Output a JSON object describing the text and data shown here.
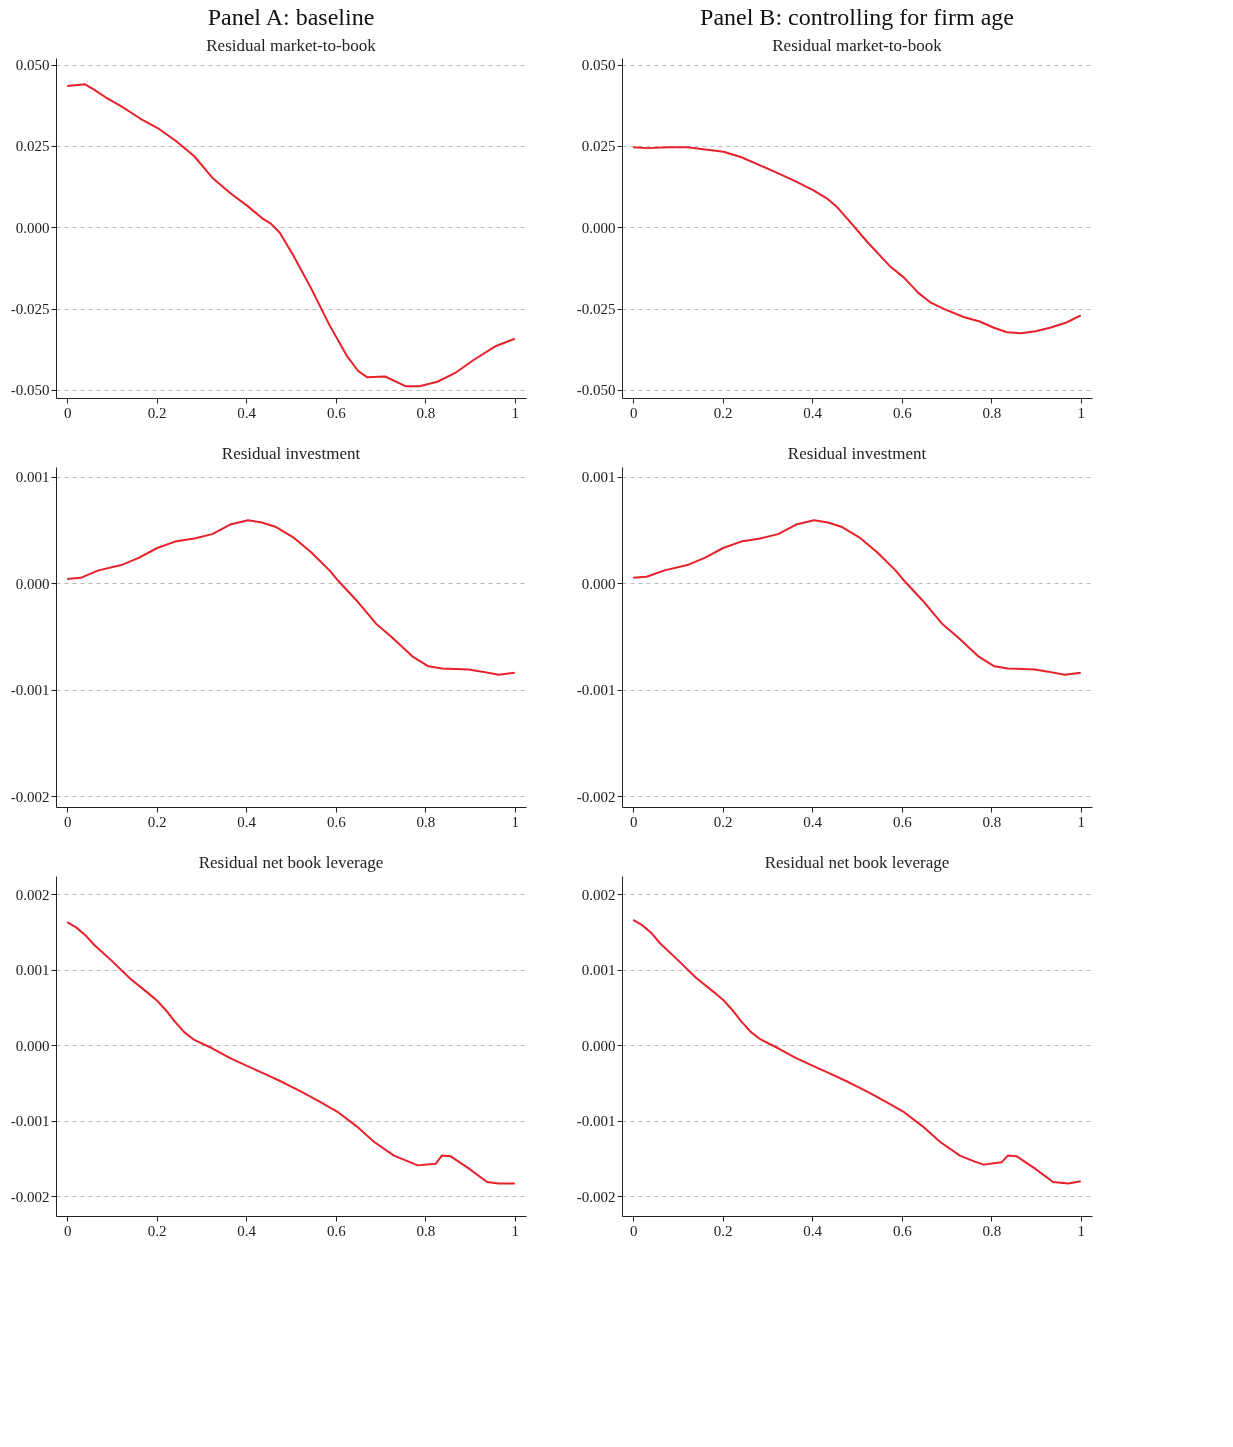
{
  "chart_data": [
    {
      "type": "line",
      "title": "Panel A: baseline",
      "subtitle": "Residual market-to-book",
      "x": [
        0,
        0.04,
        0.06,
        0.085,
        0.123,
        0.163,
        0.203,
        0.243,
        0.284,
        0.324,
        0.364,
        0.404,
        0.435,
        0.455,
        0.475,
        0.505,
        0.545,
        0.586,
        0.626,
        0.65,
        0.67,
        0.71,
        0.757,
        0.787,
        0.827,
        0.867,
        0.907,
        0.958,
        1
      ],
      "series": [
        {
          "color": "#e8202a",
          "values": [
            0.0434,
            0.0439,
            0.0423,
            0.04,
            0.037,
            0.0334,
            0.0304,
            0.0265,
            0.0218,
            0.0152,
            0.0105,
            0.0064,
            0.0028,
            0.0011,
            -0.0017,
            -0.0086,
            -0.0188,
            -0.0301,
            -0.0398,
            -0.0442,
            -0.0461,
            -0.0459,
            -0.0489,
            -0.0489,
            -0.0475,
            -0.0448,
            -0.0409,
            -0.0365,
            -0.0343
          ]
        }
      ],
      "xlim": [
        -0.025,
        1.025
      ],
      "xticks": [
        0,
        0.2,
        0.4,
        0.6,
        0.8,
        1
      ],
      "ylim": [
        -0.0525,
        0.052
      ],
      "yticks": [
        {
          "value": -0.05,
          "label": "-0.050"
        },
        {
          "value": -0.025,
          "label": "-0.025"
        },
        {
          "value": 0,
          "label": "0.000"
        },
        {
          "value": 0.025,
          "label": "0.025"
        },
        {
          "value": 0.05,
          "label": "0.050"
        }
      ],
      "grid": "y",
      "marker": "none",
      "line_style": "solid"
    },
    {
      "type": "line",
      "title": "Panel B: controlling for firm age",
      "subtitle": "Residual market-to-book",
      "x": [
        0,
        0.032,
        0.081,
        0.121,
        0.202,
        0.242,
        0.282,
        0.323,
        0.363,
        0.403,
        0.435,
        0.456,
        0.484,
        0.524,
        0.573,
        0.605,
        0.637,
        0.665,
        0.694,
        0.738,
        0.774,
        0.806,
        0.835,
        0.867,
        0.899,
        0.931,
        0.968,
        1
      ],
      "series": [
        {
          "color": "#e8202a",
          "values": [
            0.0246,
            0.0243,
            0.0246,
            0.0246,
            0.0232,
            0.0215,
            0.0191,
            0.0166,
            0.0141,
            0.0113,
            0.0086,
            0.0061,
            0.0017,
            -0.0047,
            -0.0119,
            -0.0155,
            -0.0202,
            -0.0232,
            -0.0251,
            -0.0276,
            -0.029,
            -0.0309,
            -0.0323,
            -0.0326,
            -0.032,
            -0.0309,
            -0.0293,
            -0.0271
          ]
        }
      ],
      "xlim": [
        -0.025,
        1.025
      ],
      "xticks": [
        0,
        0.2,
        0.4,
        0.6,
        0.8,
        1
      ],
      "ylim": [
        -0.0525,
        0.052
      ],
      "yticks": [
        {
          "value": -0.05,
          "label": "-0.050"
        },
        {
          "value": -0.025,
          "label": "-0.025"
        },
        {
          "value": 0,
          "label": "0.000"
        },
        {
          "value": 0.025,
          "label": "0.025"
        },
        {
          "value": 0.05,
          "label": "0.050"
        }
      ],
      "grid": "y",
      "marker": "none",
      "line_style": "solid"
    },
    {
      "type": "line",
      "title": "Residual investment",
      "x": [
        0,
        0.03,
        0.07,
        0.121,
        0.161,
        0.201,
        0.241,
        0.284,
        0.324,
        0.364,
        0.404,
        0.435,
        0.465,
        0.505,
        0.545,
        0.586,
        0.606,
        0.646,
        0.69,
        0.726,
        0.772,
        0.807,
        0.837,
        0.897,
        0.927,
        0.964,
        1
      ],
      "series": [
        {
          "color": "#e8202a",
          "values": [
            4e-05,
            5e-05,
            0.00012,
            0.00017,
            0.00024,
            0.00033,
            0.00039,
            0.00042,
            0.00046,
            0.00055,
            0.00059,
            0.00057,
            0.00053,
            0.00043,
            0.00029,
            0.00012,
            2e-05,
            -0.00016,
            -0.00038,
            -0.00051,
            -0.00069,
            -0.00078,
            -0.0008,
            -0.00081,
            -0.00083,
            -0.00086,
            -0.00084
          ]
        }
      ],
      "xlim": [
        -0.025,
        1.025
      ],
      "xticks": [
        0,
        0.2,
        0.4,
        0.6,
        0.8,
        1
      ],
      "ylim": [
        -0.0021,
        0.00109
      ],
      "yticks": [
        {
          "value": -0.002,
          "label": "-0.002"
        },
        {
          "value": -0.001,
          "label": "-0.001"
        },
        {
          "value": 0,
          "label": "0.000"
        },
        {
          "value": 0.001,
          "label": "0.001"
        }
      ],
      "grid": "y",
      "marker": "none",
      "line_style": "solid"
    },
    {
      "type": "line",
      "title": "Residual investment",
      "x": [
        0,
        0.03,
        0.07,
        0.121,
        0.161,
        0.201,
        0.241,
        0.284,
        0.324,
        0.364,
        0.404,
        0.435,
        0.465,
        0.505,
        0.545,
        0.586,
        0.606,
        0.646,
        0.69,
        0.726,
        0.772,
        0.807,
        0.837,
        0.897,
        0.927,
        0.964,
        1
      ],
      "series": [
        {
          "color": "#e8202a",
          "values": [
            5e-05,
            6e-05,
            0.00012,
            0.00017,
            0.00024,
            0.00033,
            0.00039,
            0.00042,
            0.00046,
            0.00055,
            0.00059,
            0.00057,
            0.00053,
            0.00043,
            0.00029,
            0.00012,
            2e-05,
            -0.00016,
            -0.00038,
            -0.00051,
            -0.00069,
            -0.00078,
            -0.0008,
            -0.00081,
            -0.00083,
            -0.00086,
            -0.00084
          ]
        }
      ],
      "xlim": [
        -0.025,
        1.025
      ],
      "xticks": [
        0,
        0.2,
        0.4,
        0.6,
        0.8,
        1
      ],
      "ylim": [
        -0.0021,
        0.00109
      ],
      "yticks": [
        {
          "value": -0.002,
          "label": "-0.002"
        },
        {
          "value": -0.001,
          "label": "-0.001"
        },
        {
          "value": 0,
          "label": "0.000"
        },
        {
          "value": 0.001,
          "label": "0.001"
        }
      ],
      "grid": "y",
      "marker": "none",
      "line_style": "solid"
    },
    {
      "type": "line",
      "title": "Residual net book leverage",
      "x": [
        0,
        0.02,
        0.04,
        0.06,
        0.101,
        0.141,
        0.181,
        0.201,
        0.221,
        0.241,
        0.262,
        0.284,
        0.324,
        0.364,
        0.404,
        0.445,
        0.485,
        0.525,
        0.565,
        0.606,
        0.646,
        0.686,
        0.73,
        0.763,
        0.783,
        0.823,
        0.837,
        0.857,
        0.897,
        0.938,
        0.964,
        1
      ],
      "series": [
        {
          "color": "#e8202a",
          "values": [
            0.00163,
            0.00156,
            0.00146,
            0.00133,
            0.00111,
            0.00088,
            0.00069,
            0.00059,
            0.00046,
            0.00031,
            0.00017,
            7e-05,
            -4e-05,
            -0.00017,
            -0.00028,
            -0.00039,
            -0.0005,
            -0.00062,
            -0.00075,
            -0.00089,
            -0.00107,
            -0.00128,
            -0.00146,
            -0.00154,
            -0.00159,
            -0.00157,
            -0.00146,
            -0.00147,
            -0.00163,
            -0.00181,
            -0.00183,
            -0.00183
          ]
        }
      ],
      "xlim": [
        -0.025,
        1.025
      ],
      "xticks": [
        0,
        0.2,
        0.4,
        0.6,
        0.8,
        1
      ],
      "ylim": [
        -0.00226,
        0.00224
      ],
      "yticks": [
        {
          "value": -0.002,
          "label": "-0.002"
        },
        {
          "value": -0.001,
          "label": "-0.001"
        },
        {
          "value": 0,
          "label": "0.000"
        },
        {
          "value": 0.001,
          "label": "0.001"
        },
        {
          "value": 0.002,
          "label": "0.002"
        }
      ],
      "grid": "y",
      "marker": "none",
      "line_style": "solid"
    },
    {
      "type": "line",
      "title": "Residual net book leverage",
      "x": [
        0,
        0.02,
        0.04,
        0.06,
        0.101,
        0.141,
        0.181,
        0.201,
        0.221,
        0.241,
        0.262,
        0.284,
        0.324,
        0.364,
        0.404,
        0.445,
        0.485,
        0.525,
        0.565,
        0.606,
        0.646,
        0.686,
        0.73,
        0.763,
        0.783,
        0.823,
        0.837,
        0.857,
        0.897,
        0.938,
        0.972,
        1
      ],
      "series": [
        {
          "color": "#e8202a",
          "values": [
            0.00166,
            0.00159,
            0.00149,
            0.00135,
            0.00112,
            0.00089,
            0.0007,
            0.0006,
            0.00047,
            0.00032,
            0.00018,
            8e-05,
            -4e-05,
            -0.00017,
            -0.00028,
            -0.00039,
            -0.0005,
            -0.00062,
            -0.00075,
            -0.00089,
            -0.00107,
            -0.00128,
            -0.00146,
            -0.00154,
            -0.00158,
            -0.00155,
            -0.00146,
            -0.00147,
            -0.00163,
            -0.00181,
            -0.00183,
            -0.0018
          ]
        }
      ],
      "xlim": [
        -0.025,
        1.025
      ],
      "xticks": [
        0,
        0.2,
        0.4,
        0.6,
        0.8,
        1
      ],
      "ylim": [
        -0.00226,
        0.00224
      ],
      "yticks": [
        {
          "value": -0.002,
          "label": "-0.002"
        },
        {
          "value": -0.001,
          "label": "-0.001"
        },
        {
          "value": 0,
          "label": "0.000"
        },
        {
          "value": 0.001,
          "label": "0.001"
        },
        {
          "value": 0.002,
          "label": "0.002"
        }
      ],
      "grid": "y",
      "marker": "none",
      "line_style": "solid"
    }
  ]
}
